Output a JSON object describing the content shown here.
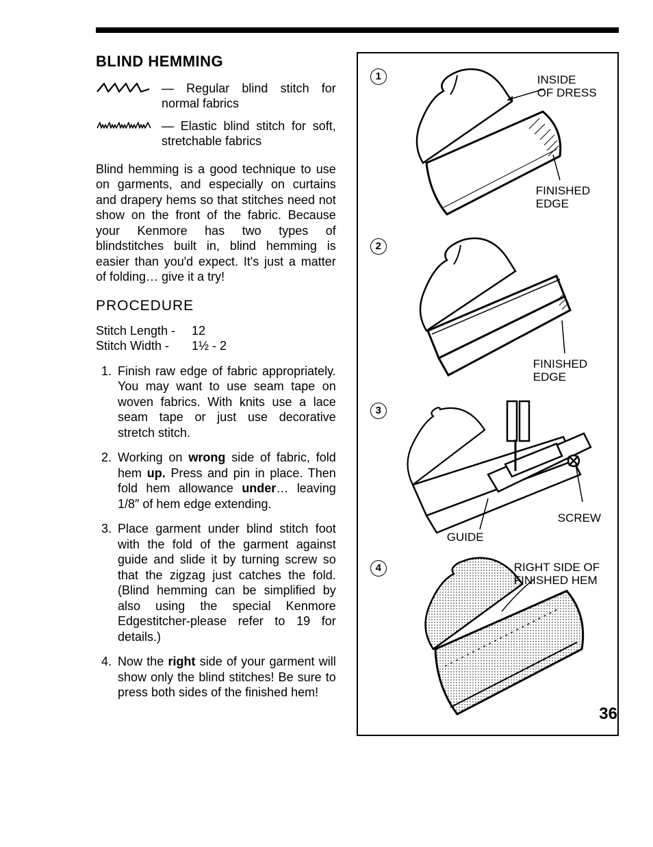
{
  "title": "BLIND HEMMING",
  "stitches": [
    {
      "desc": "— Regular blind stitch for normal fabrics"
    },
    {
      "desc": "— Elastic blind stitch for soft, stretchable fabrics"
    }
  ],
  "intro_para": "Blind hemming is a good technique to use on garments, and especially on curtains and drapery hems so that stitches need not show on the front of the fabric. Because your Kenmore has two types of blindstitches built in, blind hemming is easier than you'd expect. It's just a matter of folding… give it a try!",
  "procedure_heading": "PROCEDURE",
  "settings": {
    "stitch_length_label": "Stitch Length -",
    "stitch_length_value": "12",
    "stitch_width_label": "Stitch Width -",
    "stitch_width_value": "1½  - 2"
  },
  "steps": [
    "Finish raw edge of fabric appropriately. You may want to use seam tape on woven fabrics. With knits use a lace seam tape or just use decorative stretch stitch.",
    "Working on <b>wrong</b> side of fabric, fold hem <b>up.</b> Press and pin in place. Then fold hem allowance <b>under</b>… leaving 1/8″ of hem edge extending.",
    "Place garment under blind stitch foot with the fold of the garment against guide and slide it by turning screw so that the zigzag just catches the fold. (Blind hemming can be simplified by also using the special Kenmore Edgestitcher-please refer to 19 for details.)",
    "Now the <b>right</b> side of your garment will show only the blind stitches! Be sure to press both sides of the finished hem!"
  ],
  "diagrams": {
    "d1": {
      "num": "1",
      "label_top": "INSIDE\nOF DRESS",
      "label_right": "FINISHED\nEDGE"
    },
    "d2": {
      "num": "2",
      "label_right": "FINISHED\nEDGE"
    },
    "d3": {
      "num": "3",
      "label_guide": "GUIDE",
      "label_screw": "SCREW"
    },
    "d4": {
      "num": "4",
      "label": "RIGHT SIDE OF\nFINISHED HEM"
    }
  },
  "page_number": "36",
  "colors": {
    "ink": "#000000",
    "paper": "#ffffff",
    "shade": "#808080"
  }
}
